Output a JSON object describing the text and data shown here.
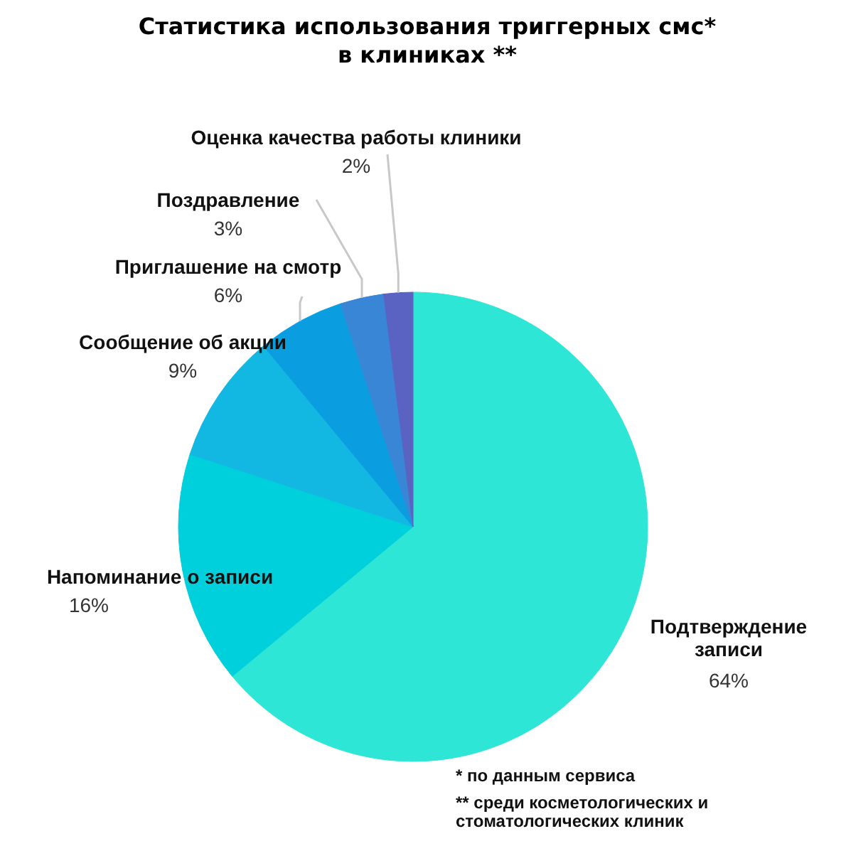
{
  "chart_data": {
    "type": "pie",
    "title": "Статистика использования триггерных смс*\nв клиниках **",
    "categories": [
      "Подтверждение\nзаписи",
      "Напоминание о записи",
      "Сообщение об акции",
      "Приглашение на смотр",
      "Поздравление",
      "Оценка качества работы клиники"
    ],
    "values": [
      64,
      16,
      9,
      6,
      3,
      2
    ],
    "colors": [
      "#2ee6d6",
      "#00d0dc",
      "#12b8e2",
      "#0a9ee0",
      "#3a86d6",
      "#5a62c2"
    ],
    "value_labels": [
      "64%",
      "16%",
      "9%",
      "6%",
      "3%",
      "2%"
    ],
    "annotations": [
      "* по данным сервиса",
      "** среди косметологических и\nстоматологических клиник"
    ]
  }
}
